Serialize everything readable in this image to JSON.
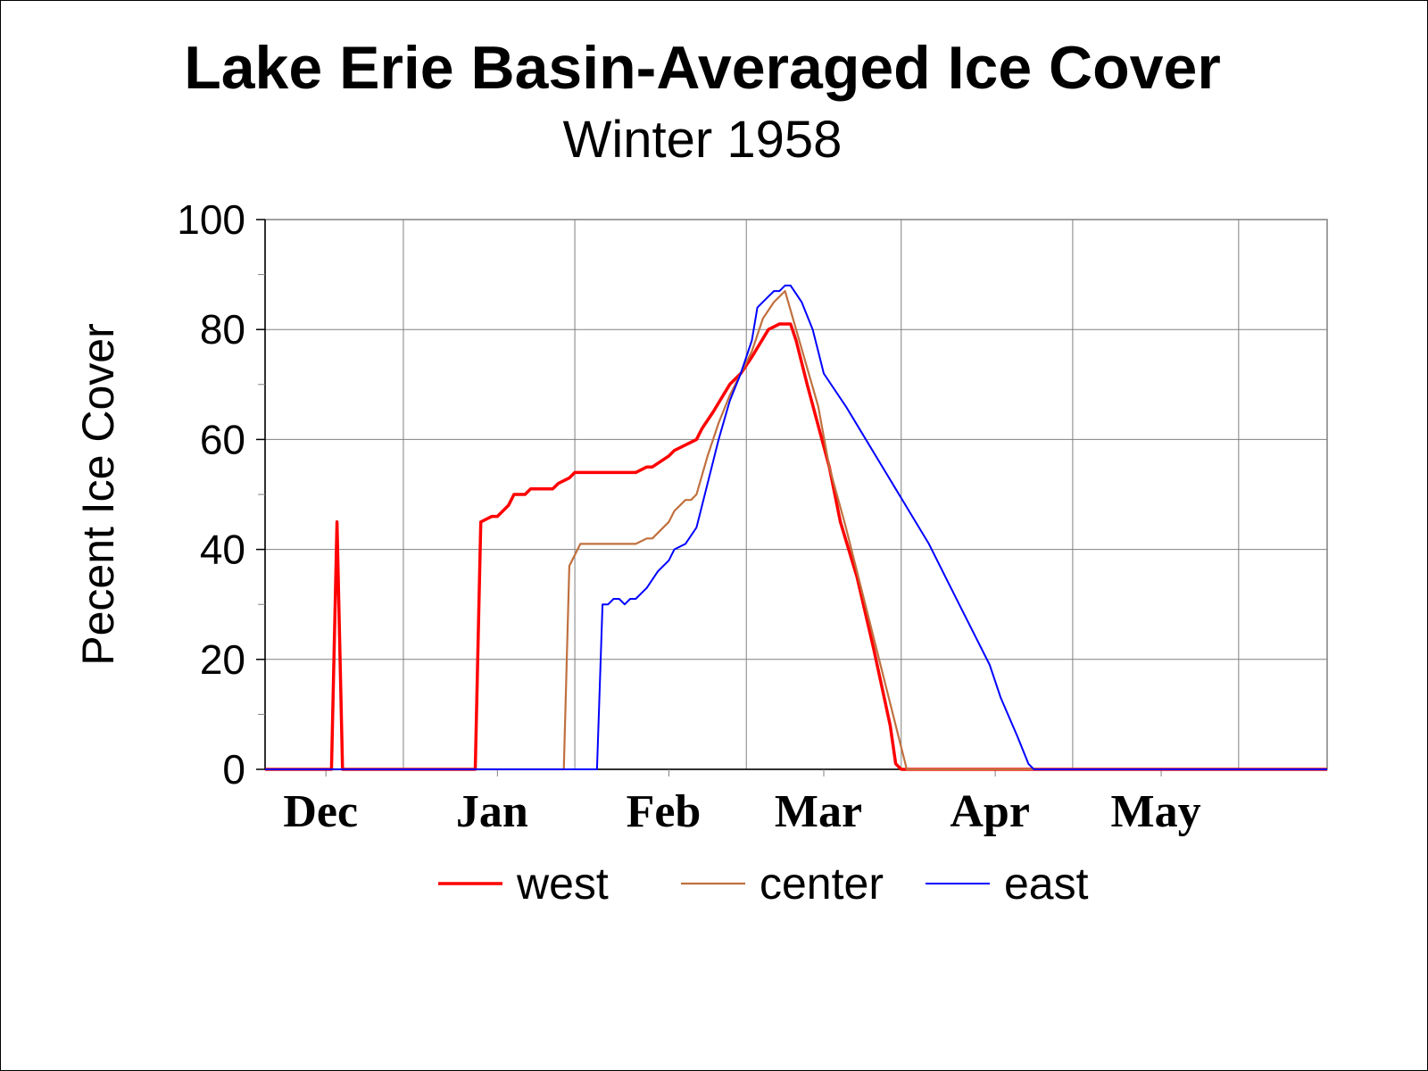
{
  "chart_data": {
    "type": "line",
    "title": "Lake Erie Basin-Averaged Ice Cover",
    "subtitle": "Winter 1958",
    "xlabel": "",
    "ylabel": "Pecent Ice Cover",
    "x_tick_labels": [
      "Dec",
      "Jan",
      "Feb",
      "Mar",
      "Apr",
      "May"
    ],
    "x_unit": "date",
    "xlim": [
      "1957-11-20",
      "1958-05-31"
    ],
    "y_ticks": [
      0,
      20,
      40,
      60,
      80,
      100
    ],
    "ylim": [
      0,
      100
    ],
    "grid": true,
    "legend_position": "bottom",
    "series": [
      {
        "name": "west",
        "color": "#ff0000",
        "points": [
          [
            "1957-11-20",
            0
          ],
          [
            "1957-12-02",
            0
          ],
          [
            "1957-12-03",
            45
          ],
          [
            "1957-12-04",
            0
          ],
          [
            "1957-12-28",
            0
          ],
          [
            "1957-12-29",
            45
          ],
          [
            "1957-12-31",
            46
          ],
          [
            "1958-01-01",
            46
          ],
          [
            "1958-01-03",
            48
          ],
          [
            "1958-01-04",
            50
          ],
          [
            "1958-01-06",
            50
          ],
          [
            "1958-01-07",
            51
          ],
          [
            "1958-01-11",
            51
          ],
          [
            "1958-01-12",
            52
          ],
          [
            "1958-01-14",
            53
          ],
          [
            "1958-01-15",
            54
          ],
          [
            "1958-01-26",
            54
          ],
          [
            "1958-01-28",
            55
          ],
          [
            "1958-01-29",
            55
          ],
          [
            "1958-02-01",
            57
          ],
          [
            "1958-02-02",
            58
          ],
          [
            "1958-02-04",
            59
          ],
          [
            "1958-02-06",
            60
          ],
          [
            "1958-02-07",
            62
          ],
          [
            "1958-02-09",
            65
          ],
          [
            "1958-02-12",
            70
          ],
          [
            "1958-02-14",
            72
          ],
          [
            "1958-02-16",
            75
          ],
          [
            "1958-02-19",
            80
          ],
          [
            "1958-02-21",
            81
          ],
          [
            "1958-02-23",
            81
          ],
          [
            "1958-02-24",
            78
          ],
          [
            "1958-02-26",
            70
          ],
          [
            "1958-03-02",
            55
          ],
          [
            "1958-03-04",
            45
          ],
          [
            "1958-03-07",
            35
          ],
          [
            "1958-03-10",
            22
          ],
          [
            "1958-03-13",
            8
          ],
          [
            "1958-03-14",
            1
          ],
          [
            "1958-03-15",
            0
          ],
          [
            "1958-05-31",
            0
          ]
        ]
      },
      {
        "name": "center",
        "color": "#c0703f",
        "points": [
          [
            "1957-11-20",
            0
          ],
          [
            "1958-01-13",
            0
          ],
          [
            "1958-01-14",
            37
          ],
          [
            "1958-01-16",
            41
          ],
          [
            "1958-01-26",
            41
          ],
          [
            "1958-01-28",
            42
          ],
          [
            "1958-01-29",
            42
          ],
          [
            "1958-02-01",
            45
          ],
          [
            "1958-02-02",
            47
          ],
          [
            "1958-02-04",
            49
          ],
          [
            "1958-02-05",
            49
          ],
          [
            "1958-02-06",
            50
          ],
          [
            "1958-02-08",
            57
          ],
          [
            "1958-02-10",
            63
          ],
          [
            "1958-02-12",
            68
          ],
          [
            "1958-02-14",
            72
          ],
          [
            "1958-02-16",
            76
          ],
          [
            "1958-02-18",
            82
          ],
          [
            "1958-02-20",
            85
          ],
          [
            "1958-02-22",
            87
          ],
          [
            "1958-02-24",
            80
          ],
          [
            "1958-02-26",
            73
          ],
          [
            "1958-02-28",
            66
          ],
          [
            "1958-03-02",
            55
          ],
          [
            "1958-03-05",
            44
          ],
          [
            "1958-03-08",
            32
          ],
          [
            "1958-03-11",
            20
          ],
          [
            "1958-03-13",
            12
          ],
          [
            "1958-03-16",
            0
          ],
          [
            "1958-05-31",
            0
          ]
        ]
      },
      {
        "name": "east",
        "color": "#0000ff",
        "points": [
          [
            "1957-11-20",
            0
          ],
          [
            "1958-01-19",
            0
          ],
          [
            "1958-01-20",
            30
          ],
          [
            "1958-01-21",
            30
          ],
          [
            "1958-01-22",
            31
          ],
          [
            "1958-01-23",
            31
          ],
          [
            "1958-01-24",
            30
          ],
          [
            "1958-01-25",
            31
          ],
          [
            "1958-01-26",
            31
          ],
          [
            "1958-01-28",
            33
          ],
          [
            "1958-01-30",
            36
          ],
          [
            "1958-02-01",
            38
          ],
          [
            "1958-02-02",
            40
          ],
          [
            "1958-02-04",
            41
          ],
          [
            "1958-02-06",
            44
          ],
          [
            "1958-02-08",
            52
          ],
          [
            "1958-02-10",
            60
          ],
          [
            "1958-02-12",
            67
          ],
          [
            "1958-02-14",
            72
          ],
          [
            "1958-02-16",
            78
          ],
          [
            "1958-02-17",
            84
          ],
          [
            "1958-02-19",
            86
          ],
          [
            "1958-02-20",
            87
          ],
          [
            "1958-02-21",
            87
          ],
          [
            "1958-02-22",
            88
          ],
          [
            "1958-02-23",
            88
          ],
          [
            "1958-02-25",
            85
          ],
          [
            "1958-02-27",
            80
          ],
          [
            "1958-02-28",
            76
          ],
          [
            "1958-03-01",
            72
          ],
          [
            "1958-03-03",
            69
          ],
          [
            "1958-03-05",
            66
          ],
          [
            "1958-03-08",
            61
          ],
          [
            "1958-03-11",
            56
          ],
          [
            "1958-03-14",
            51
          ],
          [
            "1958-03-17",
            46
          ],
          [
            "1958-03-20",
            41
          ],
          [
            "1958-03-23",
            35
          ],
          [
            "1958-03-26",
            29
          ],
          [
            "1958-03-29",
            23
          ],
          [
            "1958-03-31",
            19
          ],
          [
            "1958-04-02",
            13
          ],
          [
            "1958-04-05",
            6
          ],
          [
            "1958-04-07",
            1
          ],
          [
            "1958-04-08",
            0
          ],
          [
            "1958-05-31",
            0
          ]
        ]
      }
    ]
  }
}
